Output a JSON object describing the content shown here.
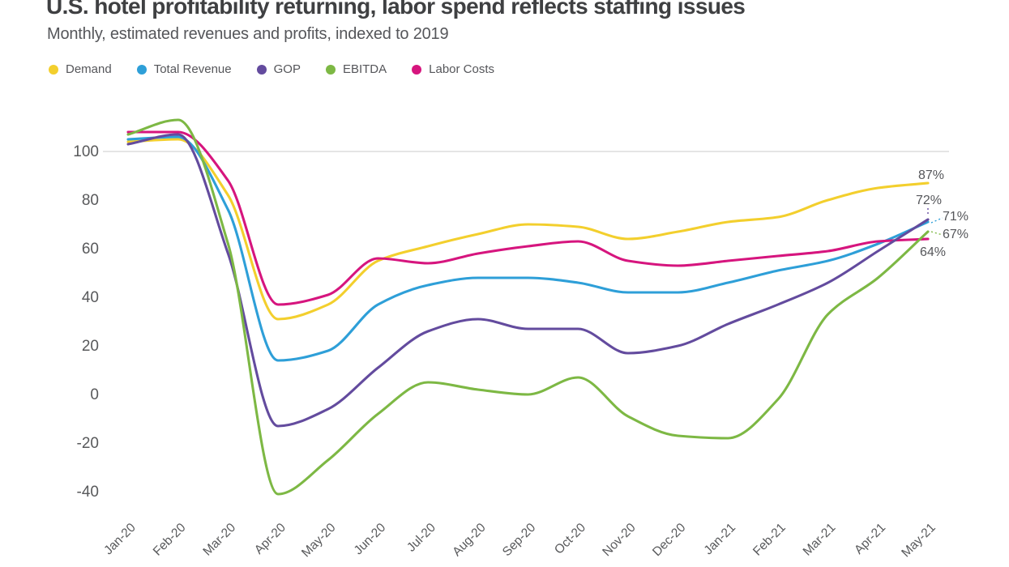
{
  "header": {
    "title": "U.S. hotel profitability returning, labor spend reflects staffing issues",
    "subtitle": "Monthly, estimated revenues and profits, indexed to 2019"
  },
  "chart_data": {
    "type": "line",
    "x_labels": [
      "Jan-20",
      "Feb-20",
      "Mar-20",
      "Apr-20",
      "May-20",
      "Jun-20",
      "Jul-20",
      "Aug-20",
      "Sep-20",
      "Oct-20",
      "Nov-20",
      "Dec-20",
      "Jan-21",
      "Feb-21",
      "Mar-21",
      "Apr-21",
      "May-21"
    ],
    "y_ticks": [
      100,
      80,
      60,
      40,
      20,
      0,
      -20,
      -40
    ],
    "ylim": [
      -48,
      116
    ],
    "reference_line_value": 100,
    "grid": "single horizontal reference line at 100 only",
    "legend_position": "top-left",
    "smoothing": "monotone cubic spline",
    "series": [
      {
        "name": "Demand",
        "color": "#F3CF2D",
        "end_label": "87%",
        "values": [
          104,
          105,
          82,
          31,
          37,
          55,
          61,
          66,
          70,
          69,
          64,
          67,
          71,
          73,
          80,
          85,
          87
        ]
      },
      {
        "name": "Total Revenue",
        "color": "#2E9FD8",
        "end_label": "71%",
        "values": [
          105,
          106,
          76,
          14,
          18,
          37,
          45,
          48,
          48,
          46,
          42,
          42,
          46,
          51,
          55,
          62,
          71
        ]
      },
      {
        "name": "GOP",
        "color": "#634B9E",
        "end_label": "72%",
        "values": [
          103,
          107,
          58,
          -13,
          -6,
          11,
          26,
          31,
          27,
          27,
          17,
          20,
          29,
          37,
          46,
          59,
          72
        ]
      },
      {
        "name": "EBITDA",
        "color": "#7DB844",
        "end_label": "67%",
        "values": [
          107,
          113,
          62,
          -41,
          -27,
          -8,
          5,
          2,
          0,
          7,
          -9,
          -17,
          -18,
          -2,
          33,
          48,
          67
        ]
      },
      {
        "name": "Labor Costs",
        "color": "#D6157E",
        "end_label": "64%",
        "values": [
          108,
          108,
          88,
          37,
          41,
          56,
          54,
          58,
          61,
          63,
          55,
          53,
          55,
          57,
          59,
          63,
          64
        ]
      }
    ],
    "colors": {
      "axis_text": "#58595b",
      "grid_line": "#cbcbcb",
      "title_text": "#3f4042"
    }
  }
}
